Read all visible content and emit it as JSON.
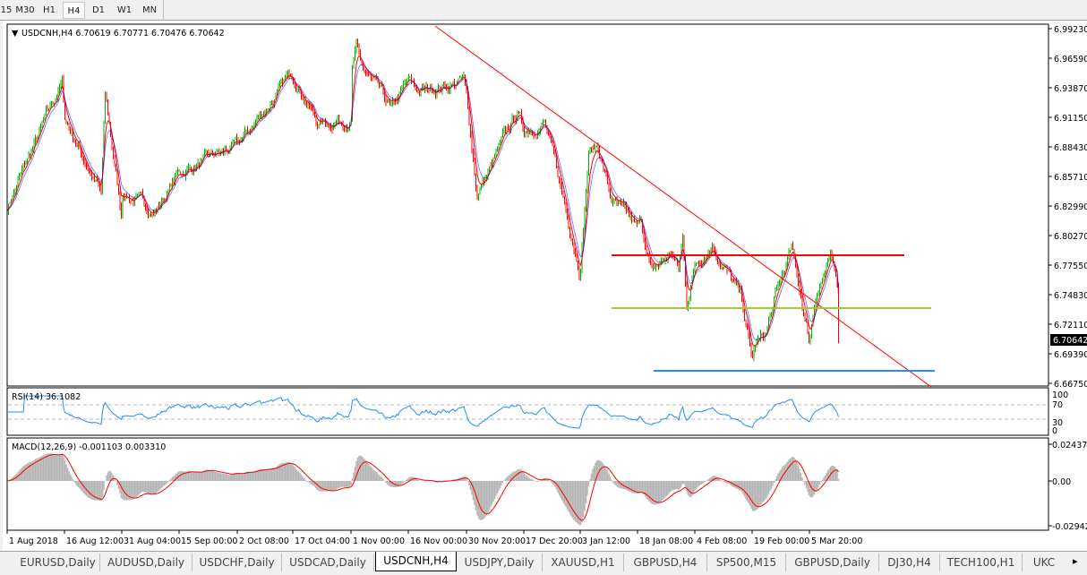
{
  "toolbar": {
    "timeframes": [
      {
        "label": "15"
      },
      {
        "label": "M30"
      },
      {
        "label": "H1"
      },
      {
        "label": "H4",
        "active": true
      },
      {
        "label": "D1"
      },
      {
        "label": "W1"
      },
      {
        "label": "MN"
      }
    ]
  },
  "chart": {
    "header": "USDCNH,H4  6.70619 6.70771 6.70476 6.70642",
    "last_price": "6.70642",
    "colors": {
      "bull": "#00b400",
      "bear": "#ff0000",
      "ma_fast": "#ff0000",
      "ma_slow": "#0000ff",
      "trendline": "#ff0000",
      "resistance": "#ff0000",
      "mid_level": "#9acd32",
      "support": "#1e90ff",
      "rsi": "#1e90ff",
      "macd_hist": "#b4b4b4",
      "macd_signal": "#ff0000"
    },
    "price_axis": [
      "6.99230",
      "6.96590",
      "6.93870",
      "6.91150",
      "6.88430",
      "6.85710",
      "6.82990",
      "6.80270",
      "6.77550",
      "6.74830",
      "6.72110",
      "6.69390",
      "6.66750"
    ],
    "levels": {
      "resistance": 6.7848,
      "mid": 6.7364,
      "support": 6.6789
    },
    "time_axis": [
      "1 Aug 2018",
      "16 Aug 12:00",
      "31 Aug 04:00",
      "15 Sep 00:00",
      "2 Oct 08:00",
      "17 Oct 04:00",
      "1 Nov 00:00",
      "16 Nov 00:00",
      "30 Nov 20:00",
      "17 Dec 20:00",
      "3 Jan 12:00",
      "18 Jan 08:00",
      "4 Feb 08:00",
      "19 Feb 00:00",
      "5 Mar 20:00"
    ],
    "price_path": [
      [
        "1 Aug 2018",
        6.829
      ],
      [
        "16 Aug 12:00",
        6.911
      ],
      [
        "31 Aug 04:00",
        6.819
      ],
      [
        "15 Sep 00:00",
        6.86
      ],
      [
        "2 Oct 08:00",
        6.884
      ],
      [
        "17 Oct 04:00",
        6.952
      ],
      [
        "1 Nov 00:00",
        6.91
      ],
      [
        "16 Nov 00:00",
        6.943
      ],
      [
        "30 Nov 20:00",
        6.93
      ],
      [
        "17 Dec 20:00",
        6.899
      ],
      [
        "3 Jan 12:00",
        6.773
      ],
      [
        "18 Jan 08:00",
        6.808
      ],
      [
        "4 Feb 08:00",
        6.777
      ],
      [
        "19 Feb 00:00",
        6.688
      ],
      [
        "5 Mar 20:00",
        6.7064
      ]
    ]
  },
  "rsi": {
    "label": "RSI(14) 36.1082",
    "axis": [
      "100",
      "70",
      "30",
      "0"
    ]
  },
  "macd": {
    "label": "MACD(12,26,9) -0.001103 0.003310",
    "axis": [
      "0.024372",
      "0.00",
      "-0.029423"
    ]
  },
  "tabs": [
    {
      "label": "EURUSD,Daily"
    },
    {
      "label": "AUDUSD,Daily"
    },
    {
      "label": "USDCHF,Daily"
    },
    {
      "label": "USDCAD,Daily"
    },
    {
      "label": "USDCNH,H4",
      "active": true
    },
    {
      "label": "USDJPY,Daily"
    },
    {
      "label": "XAUUSD,H1"
    },
    {
      "label": "GBPUSD,H4"
    },
    {
      "label": "SP500,M15"
    },
    {
      "label": "GBPUSD,Daily"
    },
    {
      "label": "DJ30,H4"
    },
    {
      "label": "TECH100,H1"
    },
    {
      "label": "UKC"
    }
  ],
  "tab_scroll_icon": "chevron-right-icon"
}
